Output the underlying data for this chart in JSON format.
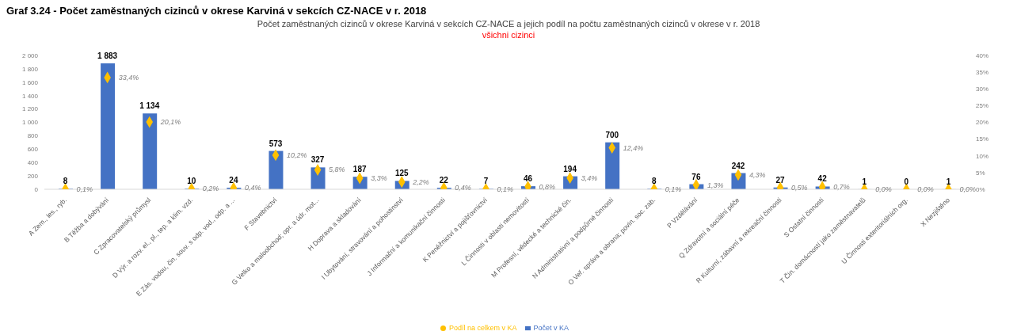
{
  "chart_data": {
    "type": "bar",
    "title": "Počet zaměstnaných cizinců v okrese Karviná v sekcích CZ-NACE a jejich podíl na počtu zaměstnaných cizinců v okrese v r. 2018",
    "subtitle": "všichni cizinci",
    "annotations": [
      "Graf 3.24 - Počet zaměstnaných cizinců v okrese Karviná v sekcích CZ-NACE v r. 2018"
    ],
    "categories": [
      "A Zem., les., ryb.",
      "B Těžba a dobývání",
      "C Zpracovatelský průmysl",
      "D Výr. a rozv. el., pl., tep. a klim. vzd.",
      "E Zás. vodou, čin. souv. s odp. vod., odp. a ...",
      "F Stavebnictví",
      "G Velko a maloobchod; opr. a údr. mot...",
      "H Doprava a skladování",
      "I Ubytování, stravování a pohostinství",
      "J Informační a komunikační činnosti",
      "K Peněžnictví a pojišťovnictví",
      "L Činnosti v oblasti nemovitostí",
      "M Profesní, vědecké a technické čin.",
      "N Administrativní a podpůrné činnosti",
      "O Veř. správa a obrana; povin. soc. zab.",
      "P Vzdělávání",
      "Q Zdravotní a sociální péče",
      "R Kulturní, zábavní a rekreační činnosti",
      "S Ostatní činnosti",
      "T Čin. domácností jako zaměstnavatelů",
      "U Činnosti exteritoriálních org.",
      "X Nezjištěno"
    ],
    "series": [
      {
        "name": "Počet v KA",
        "color": "#4472c4",
        "values": [
          8,
          1883,
          1134,
          10,
          24,
          573,
          327,
          187,
          125,
          22,
          7,
          46,
          194,
          700,
          8,
          76,
          242,
          27,
          42,
          1,
          0,
          1
        ],
        "value_labels": [
          "8",
          "1 883",
          "1 134",
          "10",
          "24",
          "573",
          "327",
          "187",
          "125",
          "22",
          "7",
          "46",
          "194",
          "700",
          "8",
          "76",
          "242",
          "27",
          "42",
          "1",
          "0",
          "1"
        ]
      },
      {
        "name": "Podíl na celkem v KA",
        "type": "scatter",
        "axis": "y2",
        "color": "#ffc000",
        "values": [
          0.1,
          33.4,
          20.1,
          0.2,
          0.4,
          10.2,
          5.8,
          3.3,
          2.2,
          0.4,
          0.1,
          0.8,
          3.4,
          12.4,
          0.1,
          1.3,
          4.3,
          0.5,
          0.7,
          0.0,
          0.0,
          0.0
        ],
        "value_labels": [
          "0,1%",
          "33,4%",
          "20,1%",
          "0,2%",
          "0,4%",
          "10,2%",
          "5,8%",
          "3,3%",
          "2,2%",
          "0,4%",
          "0,1%",
          "0,8%",
          "3,4%",
          "12,4%",
          "0,1%",
          "1,3%",
          "4,3%",
          "0,5%",
          "0,7%",
          "0,0%",
          "0,0%",
          "0,0%"
        ]
      }
    ],
    "ylim": [
      0,
      2000
    ],
    "yticks": [
      0,
      200,
      400,
      600,
      800,
      {
        "value": 1000,
        "label": "1 000"
      },
      {
        "value": 1200,
        "label": "1 200"
      },
      {
        "value": 1400,
        "label": "1 400"
      },
      {
        "value": 1600,
        "label": "1 600"
      },
      {
        "value": 1800,
        "label": "1 800"
      },
      {
        "value": 2000,
        "label": "2 000"
      }
    ],
    "y2lim": [
      0,
      40
    ],
    "y2ticks": [
      {
        "value": 0,
        "label": "0%"
      },
      {
        "value": 5,
        "label": "5%"
      },
      {
        "value": 10,
        "label": "10%"
      },
      {
        "value": 15,
        "label": "15%"
      },
      {
        "value": 20,
        "label": "20%"
      },
      {
        "value": 25,
        "label": "25%"
      },
      {
        "value": 30,
        "label": "30%"
      },
      {
        "value": 35,
        "label": "35%"
      },
      {
        "value": 40,
        "label": "40%"
      }
    ],
    "marker": "diamond",
    "legend": "bottom",
    "grid": false
  }
}
